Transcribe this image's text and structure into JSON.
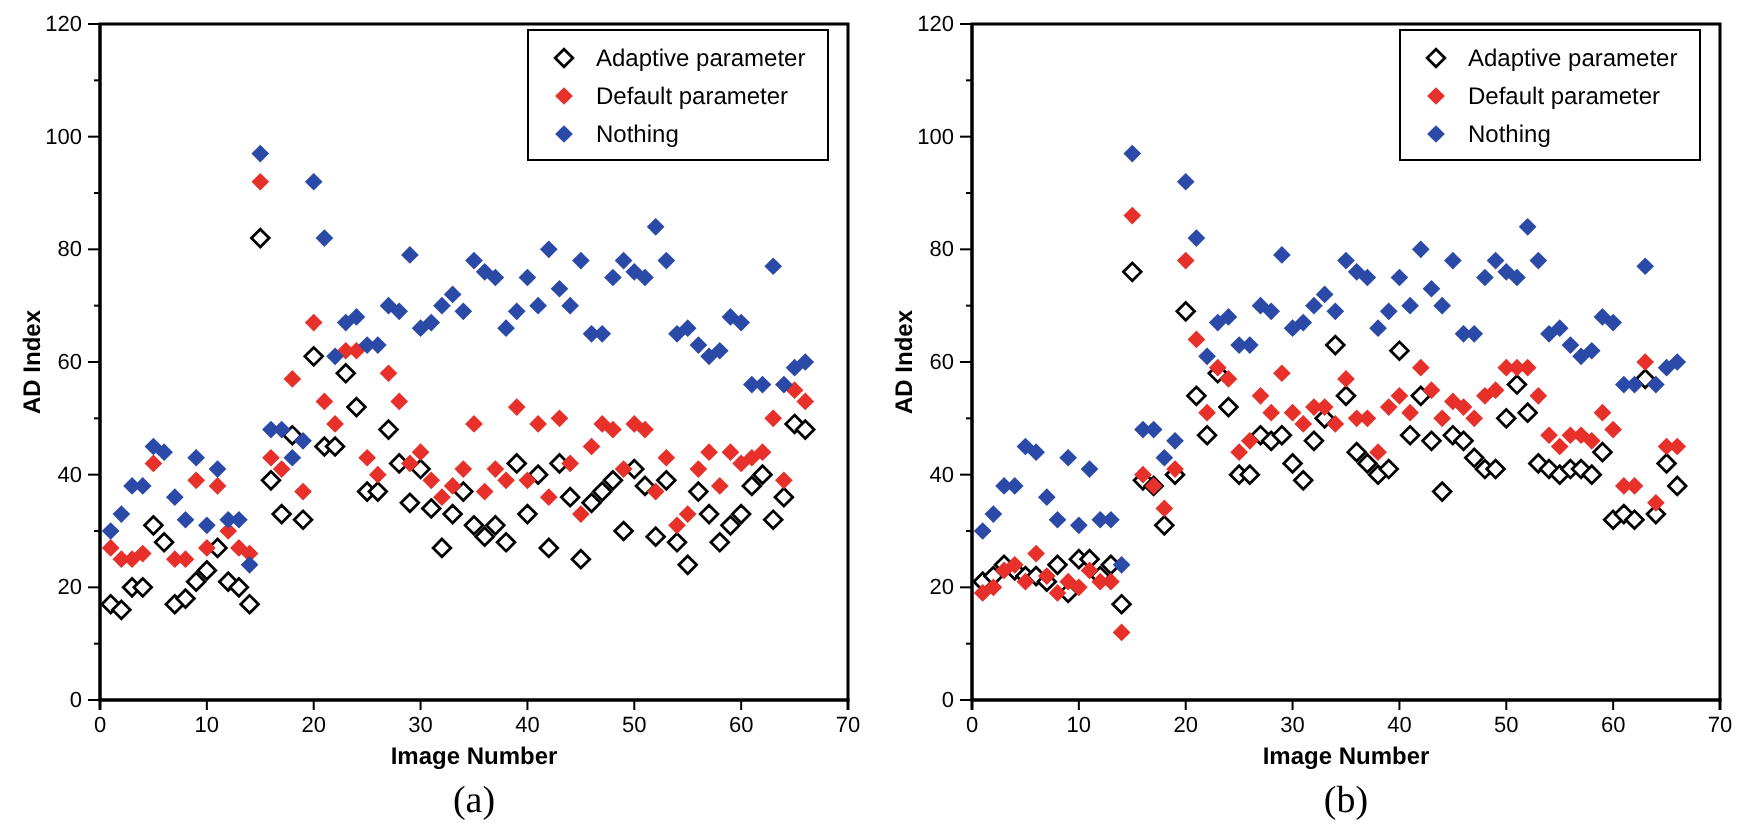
{
  "chart_data": [
    {
      "type": "scatter",
      "xlabel": "Image Number",
      "ylabel": "AD Index",
      "annotations": [
        "(a)"
      ],
      "x": [
        1,
        2,
        3,
        4,
        5,
        6,
        7,
        8,
        9,
        10,
        11,
        12,
        13,
        14,
        15,
        16,
        17,
        18,
        19,
        20,
        21,
        22,
        23,
        24,
        25,
        26,
        27,
        28,
        29,
        30,
        31,
        32,
        33,
        34,
        35,
        36,
        37,
        38,
        39,
        40,
        41,
        42,
        43,
        44,
        45,
        46,
        47,
        48,
        49,
        50,
        51,
        52,
        53,
        54,
        55,
        56,
        57,
        58,
        59,
        60,
        61,
        62,
        63,
        64,
        65,
        66
      ],
      "xlim": [
        0,
        70
      ],
      "xticks": [
        0,
        10,
        20,
        30,
        40,
        50,
        60,
        70
      ],
      "ylim": [
        0,
        120
      ],
      "yticks": [
        0,
        {
          "value": 10,
          "label": null
        },
        20,
        {
          "value": 30,
          "label": null
        },
        40,
        {
          "value": 50,
          "label": null
        },
        60,
        {
          "value": 70,
          "label": null
        },
        80,
        {
          "value": 90,
          "label": null
        },
        100,
        {
          "value": 110,
          "label": null
        },
        120
      ],
      "legend": "top right",
      "marker": "diamond",
      "grid": false,
      "series": [
        {
          "name": "Adaptive parameter",
          "color": "#000000",
          "marker": "diamond-open",
          "values": [
            17,
            16,
            20,
            20,
            31,
            28,
            17,
            18,
            21,
            23,
            27,
            21,
            20,
            17,
            82,
            39,
            33,
            47,
            32,
            61,
            45,
            45,
            58,
            52,
            37,
            37,
            48,
            42,
            35,
            41,
            34,
            27,
            33,
            37,
            31,
            29,
            31,
            28,
            42,
            33,
            40,
            27,
            42,
            36,
            25,
            35,
            37,
            39,
            30,
            41,
            38,
            29,
            39,
            28,
            24,
            37,
            33,
            28,
            31,
            33,
            38,
            40,
            32,
            36,
            49,
            48
          ]
        },
        {
          "name": "Default parameter",
          "color": "#e8302a",
          "values": [
            27,
            25,
            25,
            26,
            42,
            null,
            25,
            25,
            39,
            27,
            38,
            30,
            27,
            26,
            92,
            43,
            41,
            57,
            37,
            67,
            53,
            49,
            62,
            62,
            43,
            40,
            58,
            53,
            42,
            44,
            39,
            36,
            38,
            41,
            49,
            37,
            41,
            39,
            52,
            39,
            49,
            36,
            50,
            42,
            33,
            45,
            49,
            48,
            41,
            49,
            48,
            37,
            43,
            31,
            33,
            41,
            44,
            38,
            44,
            42,
            43,
            44,
            50,
            39,
            55,
            53
          ]
        },
        {
          "name": "Nothing",
          "color": "#2b4aa8",
          "values": [
            30,
            33,
            38,
            38,
            45,
            44,
            36,
            32,
            43,
            31,
            41,
            32,
            32,
            24,
            97,
            48,
            48,
            43,
            46,
            92,
            82,
            61,
            67,
            68,
            63,
            63,
            70,
            69,
            79,
            66,
            67,
            70,
            72,
            69,
            78,
            76,
            75,
            66,
            69,
            75,
            70,
            80,
            73,
            70,
            78,
            65,
            65,
            75,
            78,
            76,
            75,
            84,
            78,
            65,
            66,
            63,
            61,
            62,
            68,
            67,
            56,
            56,
            77,
            56,
            59,
            60
          ]
        }
      ]
    },
    {
      "type": "scatter",
      "xlabel": "Image Number",
      "ylabel": "AD Index",
      "annotations": [
        "(b)"
      ],
      "x": [
        1,
        2,
        3,
        4,
        5,
        6,
        7,
        8,
        9,
        10,
        11,
        12,
        13,
        14,
        15,
        16,
        17,
        18,
        19,
        20,
        21,
        22,
        23,
        24,
        25,
        26,
        27,
        28,
        29,
        30,
        31,
        32,
        33,
        34,
        35,
        36,
        37,
        38,
        39,
        40,
        41,
        42,
        43,
        44,
        45,
        46,
        47,
        48,
        49,
        50,
        51,
        52,
        53,
        54,
        55,
        56,
        57,
        58,
        59,
        60,
        61,
        62,
        63,
        64,
        65,
        66
      ],
      "xlim": [
        0,
        70
      ],
      "xticks": [
        0,
        10,
        20,
        30,
        40,
        50,
        60,
        70
      ],
      "ylim": [
        0,
        120
      ],
      "yticks": [
        0,
        {
          "value": 10,
          "label": null
        },
        20,
        {
          "value": 30,
          "label": null
        },
        40,
        {
          "value": 50,
          "label": null
        },
        60,
        {
          "value": 70,
          "label": null
        },
        80,
        {
          "value": 90,
          "label": null
        },
        100,
        {
          "value": 110,
          "label": null
        },
        120
      ],
      "legend": "top right",
      "marker": "diamond",
      "grid": false,
      "series": [
        {
          "name": "Adaptive parameter",
          "color": "#000000",
          "marker": "diamond-open",
          "values": [
            21,
            22,
            24,
            23,
            22,
            22,
            21,
            24,
            19,
            25,
            25,
            22,
            24,
            17,
            76,
            39,
            38,
            31,
            40,
            69,
            54,
            47,
            58,
            52,
            40,
            40,
            47,
            46,
            47,
            42,
            39,
            46,
            50,
            63,
            54,
            44,
            42,
            40,
            41,
            62,
            47,
            54,
            46,
            37,
            47,
            46,
            43,
            41,
            41,
            50,
            56,
            51,
            42,
            41,
            40,
            41,
            41,
            40,
            44,
            32,
            33,
            32,
            57,
            33,
            42,
            38
          ]
        },
        {
          "name": "Default parameter",
          "color": "#e8302a",
          "values": [
            19,
            20,
            23,
            24,
            21,
            26,
            22,
            19,
            21,
            20,
            23,
            21,
            21,
            12,
            86,
            40,
            38,
            34,
            41,
            78,
            64,
            51,
            59,
            57,
            44,
            46,
            54,
            51,
            58,
            51,
            49,
            52,
            52,
            49,
            57,
            50,
            50,
            44,
            52,
            54,
            51,
            59,
            55,
            50,
            53,
            52,
            50,
            54,
            55,
            59,
            59,
            59,
            54,
            47,
            45,
            47,
            47,
            46,
            51,
            48,
            38,
            38,
            60,
            35,
            45,
            45
          ]
        },
        {
          "name": "Nothing",
          "color": "#2b4aa8",
          "values": [
            30,
            33,
            38,
            38,
            45,
            44,
            36,
            32,
            43,
            31,
            41,
            32,
            32,
            24,
            97,
            48,
            48,
            43,
            46,
            92,
            82,
            61,
            67,
            68,
            63,
            63,
            70,
            69,
            79,
            66,
            67,
            70,
            72,
            69,
            78,
            76,
            75,
            66,
            69,
            75,
            70,
            80,
            73,
            70,
            78,
            65,
            65,
            75,
            78,
            76,
            75,
            84,
            78,
            65,
            66,
            63,
            61,
            62,
            68,
            67,
            56,
            56,
            77,
            56,
            59,
            60
          ]
        }
      ]
    }
  ]
}
